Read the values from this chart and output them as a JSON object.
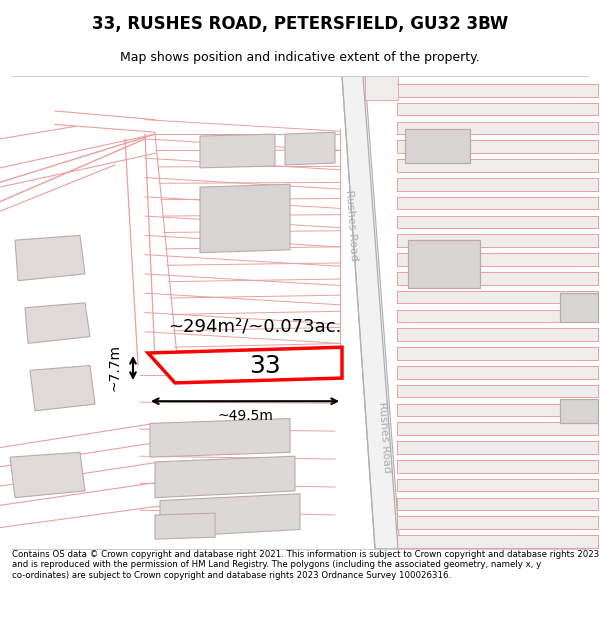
{
  "title": "33, RUSHES ROAD, PETERSFIELD, GU32 3BW",
  "subtitle": "Map shows position and indicative extent of the property.",
  "footer": "Contains OS data © Crown copyright and database right 2021. This information is subject to Crown copyright and database rights 2023 and is reproduced with the permission of HM Land Registry. The polygons (including the associated geometry, namely x, y co-ordinates) are subject to Crown copyright and database rights 2023 Ordnance Survey 100026316.",
  "bg_color": "#ffffff",
  "road_color": "#e8a0a0",
  "building_fill": "#e8e0e0",
  "building_edge": "#d08080",
  "highlight_color": "#ff0000",
  "road_label_color": "#aaaaaa",
  "area_text": "~294m²/~0.073ac.",
  "width_text": "~49.5m",
  "height_text": "~7.7m",
  "plot_number": "33",
  "rushes_road_label": "Rushes Road",
  "map_xlim": [
    0,
    600
  ],
  "map_ylim": [
    0,
    490
  ],
  "title_fontsize": 12,
  "subtitle_fontsize": 9
}
